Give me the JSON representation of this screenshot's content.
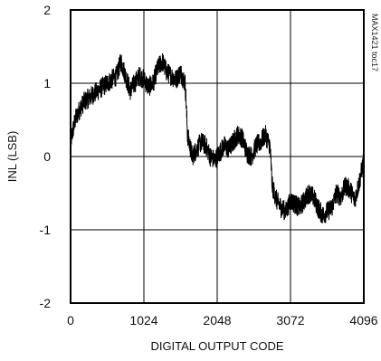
{
  "chart_data": {
    "type": "line",
    "title": "",
    "xlabel": "DIGITAL OUTPUT CODE",
    "ylabel": "INL (LSB)",
    "xlim": [
      0,
      4096
    ],
    "ylim": [
      -2,
      2
    ],
    "xticks": [
      0,
      1024,
      2048,
      3072,
      4096
    ],
    "yticks": [
      -2,
      -1,
      0,
      1,
      2
    ],
    "xtick_labels": [
      "0",
      "1024",
      "2048",
      "3072",
      "4096"
    ],
    "ytick_labels": [
      "-2",
      "-1",
      "0",
      "1",
      "2"
    ],
    "grid": true,
    "legend": "none",
    "annotation": "MAX1421 toc17",
    "series": [
      {
        "x": [
          0,
          64,
          128,
          192,
          256,
          320,
          384,
          448,
          512,
          576,
          640,
          704,
          768,
          832,
          896,
          960,
          1024,
          1088,
          1152,
          1216,
          1280,
          1344,
          1408,
          1472,
          1536,
          1600,
          1616,
          1632,
          1700,
          1760,
          1824,
          1888,
          1952,
          2016,
          2080,
          2144,
          2208,
          2272,
          2336,
          2400,
          2464,
          2528,
          2592,
          2656,
          2720,
          2784,
          2800,
          2816,
          2880,
          2944,
          3008,
          3072,
          3136,
          3200,
          3264,
          3328,
          3392,
          3456,
          3520,
          3584,
          3648,
          3712,
          3776,
          3840,
          3904,
          3968,
          4032,
          4096
        ],
        "y": [
          0.2,
          0.5,
          0.65,
          0.75,
          0.8,
          0.85,
          0.9,
          0.95,
          1.0,
          1.05,
          1.1,
          1.3,
          1.1,
          0.9,
          1.0,
          1.1,
          1.05,
          0.95,
          1.0,
          1.2,
          1.3,
          1.15,
          1.1,
          1.05,
          1.15,
          1.0,
          0.7,
          0.3,
          0.0,
          0.1,
          0.2,
          0.15,
          0.0,
          -0.05,
          0.05,
          0.15,
          0.1,
          0.2,
          0.3,
          0.25,
          0.05,
          0.0,
          0.15,
          0.2,
          0.3,
          0.15,
          -0.1,
          -0.4,
          -0.6,
          -0.7,
          -0.75,
          -0.6,
          -0.65,
          -0.7,
          -0.6,
          -0.5,
          -0.55,
          -0.7,
          -0.8,
          -0.75,
          -0.7,
          -0.5,
          -0.55,
          -0.4,
          -0.45,
          -0.6,
          -0.35,
          -0.05
        ]
      }
    ]
  }
}
